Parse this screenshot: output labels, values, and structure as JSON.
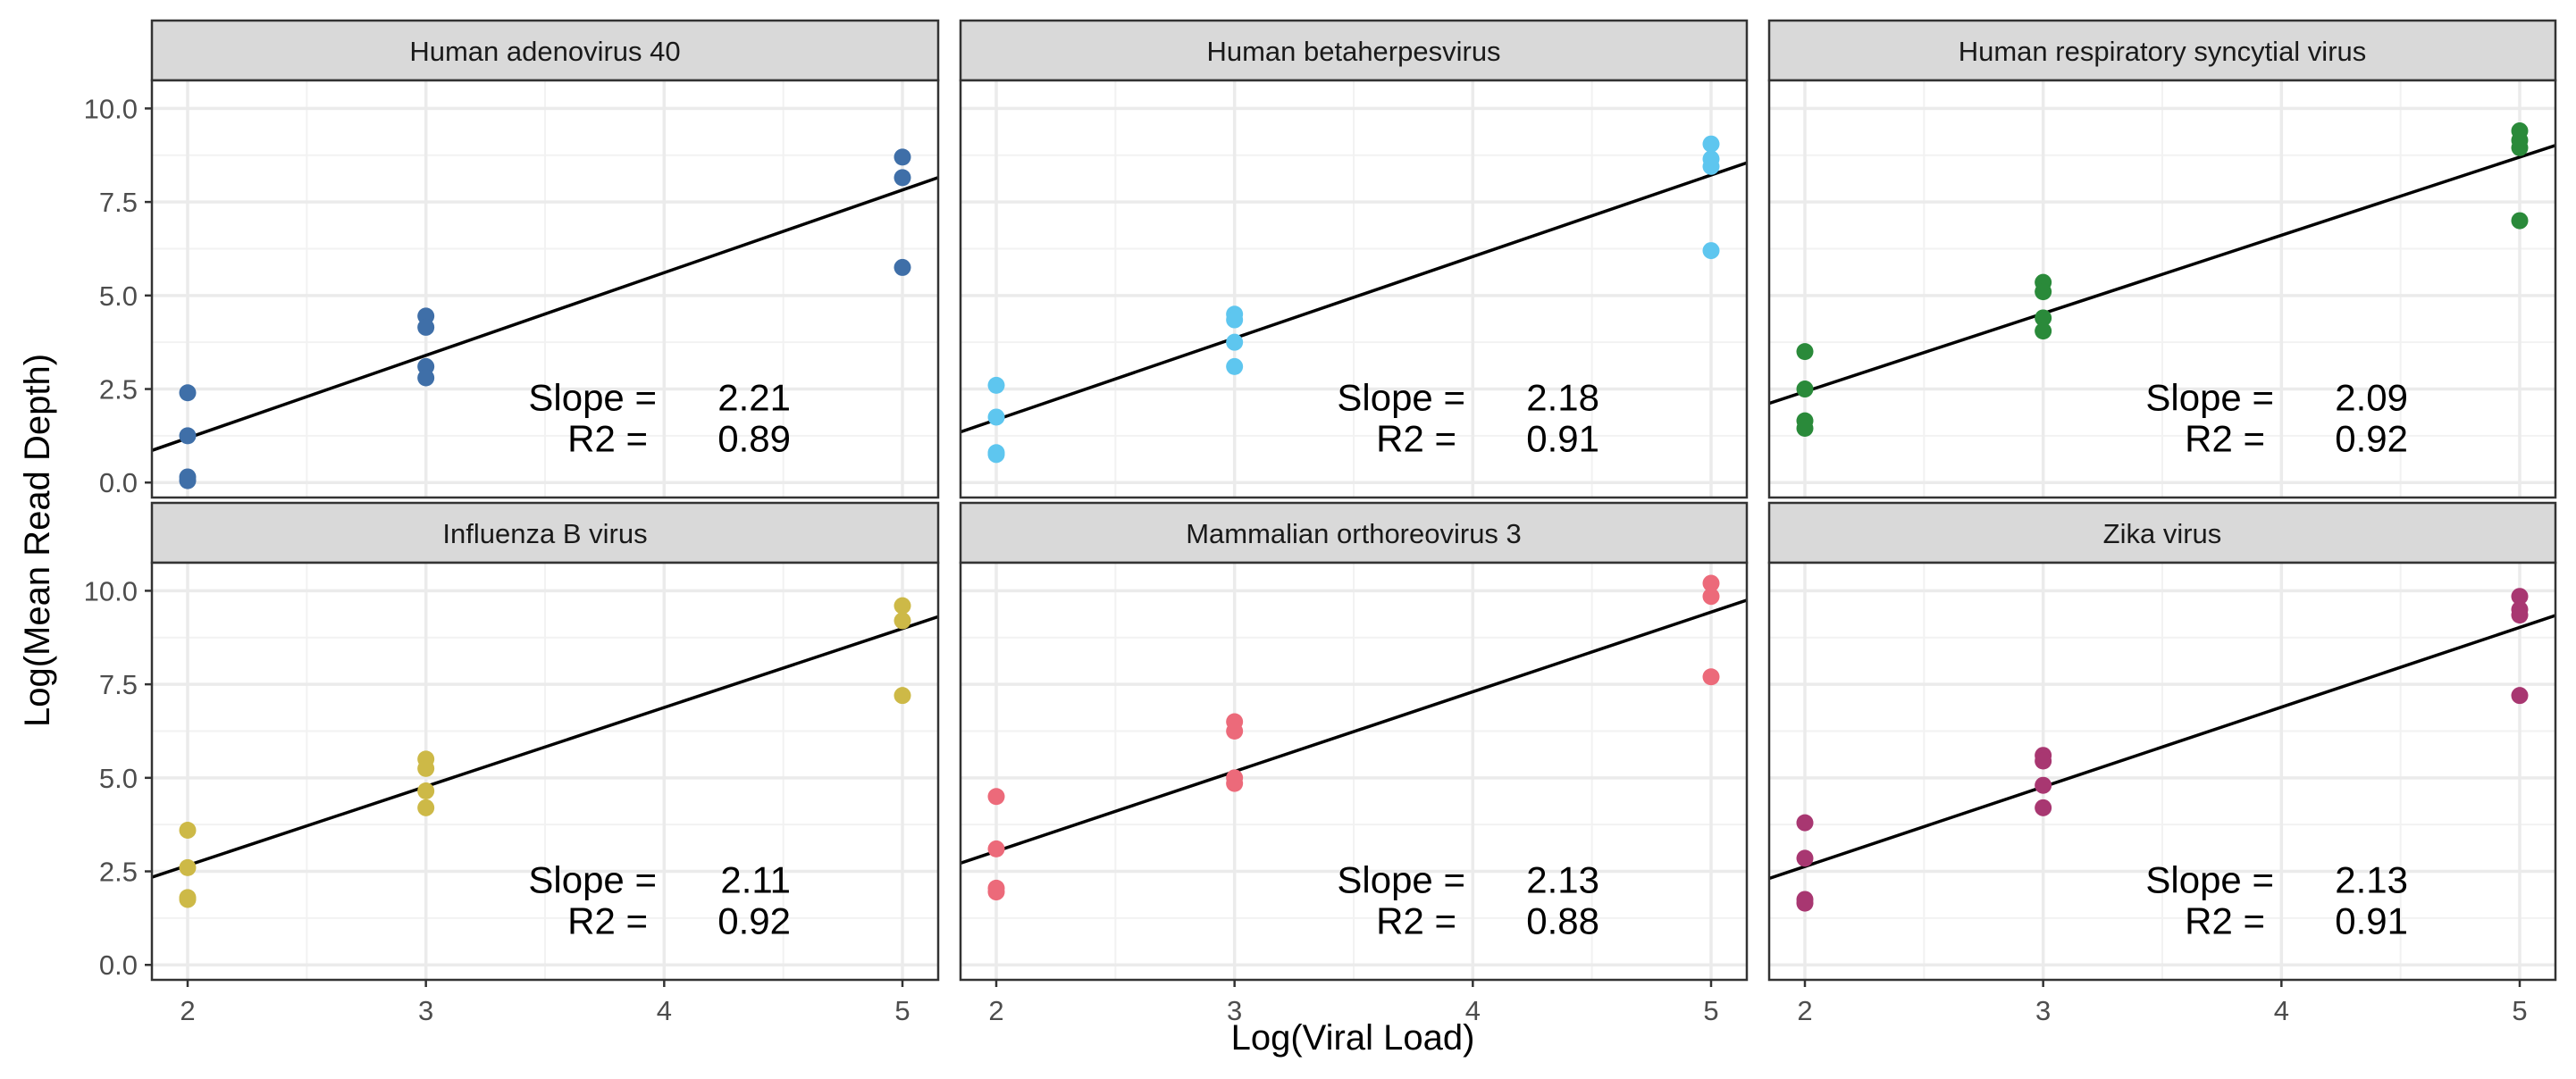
{
  "chart_data": {
    "type": "scatter",
    "xlabel": "Log(Viral Load)",
    "ylabel": "Log(Mean Read Depth)",
    "xlim": [
      1.85,
      5.15
    ],
    "ylim": [
      -0.4,
      10.75
    ],
    "xticks": [
      2,
      3,
      4,
      5
    ],
    "yticks": [
      0.0,
      2.5,
      5.0,
      7.5,
      10.0
    ],
    "xtick_labels": [
      "2",
      "3",
      "4",
      "5"
    ],
    "ytick_labels": [
      "0.0",
      "2.5",
      "5.0",
      "7.5",
      "10.0"
    ],
    "grid": true,
    "legend": "none",
    "stat_labels": {
      "slope": "Slope =",
      "r2": "R2 ="
    },
    "panels": [
      {
        "title": "Human adenovirus 40",
        "color": "#3F6FA8",
        "slope": "2.21",
        "r2": "0.89",
        "fit": {
          "intercept": -3.23,
          "slope": 2.21
        },
        "points": [
          [
            2,
            2.4
          ],
          [
            2,
            1.25
          ],
          [
            2,
            0.15
          ],
          [
            2,
            0.05
          ],
          [
            3,
            4.45
          ],
          [
            3,
            4.15
          ],
          [
            3,
            3.1
          ],
          [
            3,
            2.8
          ],
          [
            5,
            8.7
          ],
          [
            5,
            8.15
          ],
          [
            5,
            5.75
          ]
        ]
      },
      {
        "title": "Human betaherpesvirus",
        "color": "#5EC6EF",
        "slope": "2.18",
        "r2": "0.91",
        "fit": {
          "intercept": -2.68,
          "slope": 2.18
        },
        "points": [
          [
            2,
            2.6
          ],
          [
            2,
            1.75
          ],
          [
            2,
            0.8
          ],
          [
            2,
            0.75
          ],
          [
            3,
            4.5
          ],
          [
            3,
            4.35
          ],
          [
            3,
            3.75
          ],
          [
            3,
            3.1
          ],
          [
            5,
            9.05
          ],
          [
            5,
            8.65
          ],
          [
            5,
            8.45
          ],
          [
            5,
            6.2
          ]
        ]
      },
      {
        "title": "Human respiratory syncytial virus",
        "color": "#2A8A3A",
        "slope": "2.09",
        "r2": "0.92",
        "fit": {
          "intercept": -1.75,
          "slope": 2.09
        },
        "points": [
          [
            2,
            3.5
          ],
          [
            2,
            2.5
          ],
          [
            2,
            1.65
          ],
          [
            2,
            1.45
          ],
          [
            3,
            5.35
          ],
          [
            3,
            5.1
          ],
          [
            3,
            4.4
          ],
          [
            3,
            4.05
          ],
          [
            5,
            9.4
          ],
          [
            5,
            9.15
          ],
          [
            5,
            8.95
          ],
          [
            5,
            7.0
          ]
        ]
      },
      {
        "title": "Influenza B virus",
        "color": "#CDB947",
        "slope": "2.11",
        "r2": "0.92",
        "fit": {
          "intercept": -1.56,
          "slope": 2.11
        },
        "points": [
          [
            2,
            3.6
          ],
          [
            2,
            2.6
          ],
          [
            2,
            1.8
          ],
          [
            2,
            1.75
          ],
          [
            3,
            5.5
          ],
          [
            3,
            5.25
          ],
          [
            3,
            4.65
          ],
          [
            3,
            4.2
          ],
          [
            5,
            9.6
          ],
          [
            5,
            9.2
          ],
          [
            5,
            7.2
          ]
        ]
      },
      {
        "title": "Mammalian orthoreovirus 3",
        "color": "#EC6A7A",
        "slope": "2.13",
        "r2": "0.88",
        "fit": {
          "intercept": -1.22,
          "slope": 2.13
        },
        "points": [
          [
            2,
            4.5
          ],
          [
            2,
            3.1
          ],
          [
            2,
            2.05
          ],
          [
            2,
            1.95
          ],
          [
            3,
            6.5
          ],
          [
            3,
            6.25
          ],
          [
            3,
            5.0
          ],
          [
            3,
            4.85
          ],
          [
            5,
            10.2
          ],
          [
            5,
            9.85
          ],
          [
            5,
            7.7
          ]
        ]
      },
      {
        "title": "Zika virus",
        "color": "#A83771",
        "slope": "2.13",
        "r2": "0.91",
        "fit": {
          "intercept": -1.63,
          "slope": 2.13
        },
        "points": [
          [
            2,
            3.8
          ],
          [
            2,
            2.85
          ],
          [
            2,
            1.75
          ],
          [
            2,
            1.65
          ],
          [
            3,
            5.6
          ],
          [
            3,
            5.45
          ],
          [
            3,
            4.8
          ],
          [
            3,
            4.2
          ],
          [
            5,
            9.85
          ],
          [
            5,
            9.5
          ],
          [
            5,
            9.35
          ],
          [
            5,
            7.2
          ]
        ]
      }
    ]
  }
}
